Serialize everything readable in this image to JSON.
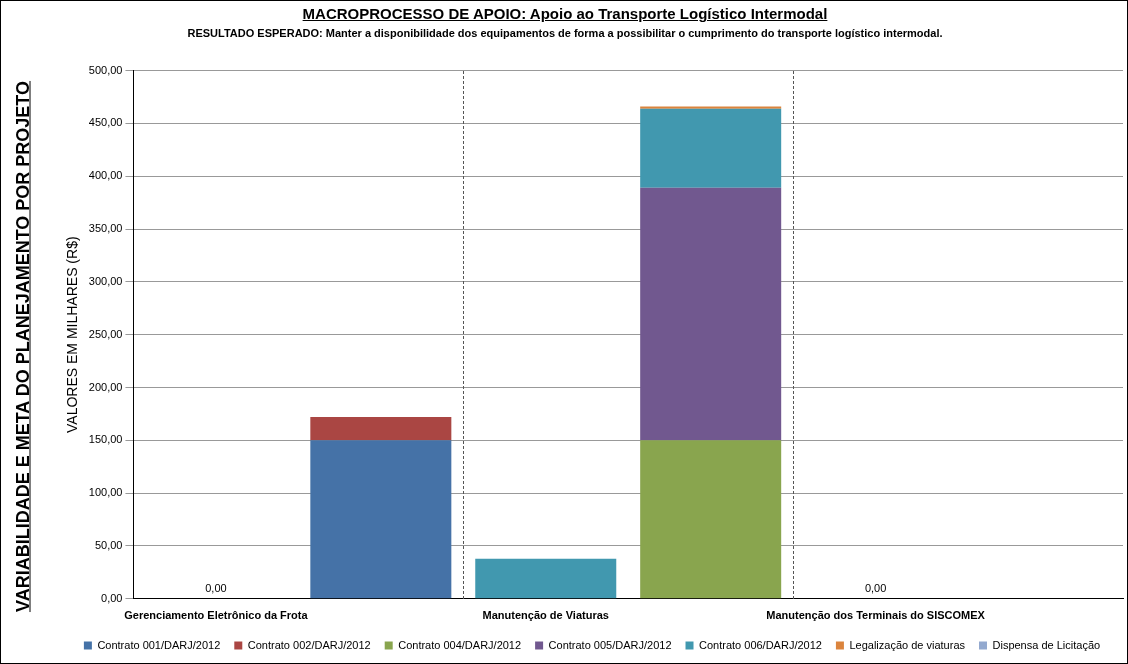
{
  "chart_data": {
    "type": "bar",
    "stacked": true,
    "title": "MACROPROCESSO DE APOIO: Apoio ao Transporte Logístico Intermodal",
    "subtitle": "RESULTADO ESPERADO: Manter a disponibilidade dos equipamentos de forma a possibilitar o cumprimento do transporte logístico intermodal.",
    "ylabel": "VALORES EM MILHARES (R$)",
    "annotations": [
      "VARIABILIDADE E META DO PLANEJAMENTO POR PROJETO"
    ],
    "categories": [
      "Gerenciamento Eletrônico da Frota",
      null,
      "Manutenção de Viaturas",
      null,
      "Manutenção dos Terminais do SISCOMEX",
      null
    ],
    "series": [
      {
        "name": "Contrato 001/DARJ/2012",
        "color": "#4572a7",
        "values": [
          null,
          150,
          null,
          null,
          null,
          null
        ]
      },
      {
        "name": "Contrato 002/DARJ/2012",
        "color": "#aa4643",
        "values": [
          null,
          22,
          null,
          null,
          null,
          null
        ]
      },
      {
        "name": "Contrato 004/DARJ/2012",
        "color": "#89a54e",
        "values": [
          null,
          null,
          null,
          150,
          null,
          null
        ]
      },
      {
        "name": "Contrato 005/DARJ/2012",
        "color": "#71588f",
        "values": [
          null,
          null,
          null,
          239,
          null,
          null
        ]
      },
      {
        "name": "Contrato 006/DARJ/2012",
        "color": "#4198af",
        "values": [
          0,
          null,
          38,
          75,
          0,
          null
        ],
        "value_labels": [
          "0,00",
          null,
          null,
          null,
          "0,00",
          null
        ]
      },
      {
        "name": "Legalização de viaturas",
        "color": "#db843d",
        "values": [
          null,
          null,
          null,
          2,
          null,
          null
        ]
      },
      {
        "name": "Dispensa de Licitação",
        "color": "#93a9cf",
        "values": [
          null,
          null,
          null,
          null,
          null,
          null
        ]
      }
    ],
    "ylim": [
      0,
      500
    ],
    "yticks": [
      {
        "value": 0,
        "label": "0,00"
      },
      {
        "value": 50,
        "label": "50,00"
      },
      {
        "value": 100,
        "label": "100,00"
      },
      {
        "value": 150,
        "label": "150,00"
      },
      {
        "value": 200,
        "label": "200,00"
      },
      {
        "value": 250,
        "label": "250,00"
      },
      {
        "value": 300,
        "label": "300,00"
      },
      {
        "value": 350,
        "label": "350,00"
      },
      {
        "value": 400,
        "label": "400,00"
      },
      {
        "value": 450,
        "label": "450,00"
      },
      {
        "value": 500,
        "label": "500,00"
      }
    ],
    "grid": "y",
    "legend": "bottom"
  }
}
